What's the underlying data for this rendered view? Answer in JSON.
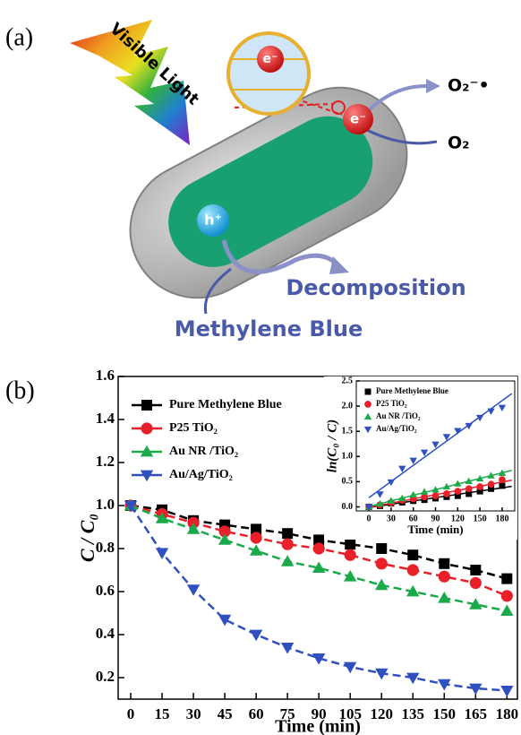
{
  "panel_a": {
    "label": "(a)",
    "light": "Visible Light",
    "electron_zoom": "e⁻",
    "electron": "e⁻",
    "superoxide": "O₂⁻•",
    "oxygen": "O₂",
    "hole": "h⁺",
    "decomposition": "Decomposition",
    "dye": "Methylene Blue"
  },
  "panel_b_label": "(b)",
  "chart_data": [
    {
      "type": "line",
      "ylabel": "C / C₀",
      "xlabel": "Time (min)",
      "lines": true,
      "x": [
        0,
        15,
        30,
        45,
        60,
        75,
        90,
        105,
        120,
        135,
        150,
        165,
        180
      ],
      "xlim": [
        -6,
        185
      ],
      "xticks": [
        0,
        15,
        30,
        45,
        60,
        75,
        90,
        105,
        120,
        135,
        150,
        165,
        180
      ],
      "ylim": [
        0.1,
        1.6
      ],
      "yticks": [
        0.2,
        0.4,
        0.6,
        0.8,
        {
          "value": 1,
          "label": "1.0"
        },
        1.2,
        1.4,
        1.6
      ],
      "series": [
        {
          "name": "Pure Methylene Blue",
          "color": "#000000",
          "marker": "square",
          "values": [
            1.0,
            0.98,
            0.93,
            0.91,
            0.89,
            0.87,
            0.84,
            0.82,
            0.8,
            0.77,
            0.73,
            0.7,
            0.66
          ]
        },
        {
          "name": "P25 TiO₂",
          "color": "#e8202a",
          "marker": "circle",
          "values": [
            1.0,
            0.96,
            0.92,
            0.88,
            0.85,
            0.82,
            0.8,
            0.77,
            0.73,
            0.7,
            0.67,
            0.64,
            0.58
          ]
        },
        {
          "name": "Au NR /TiO₂",
          "color": "#1aaa4a",
          "marker": "triangle-up",
          "values": [
            1.0,
            0.94,
            0.89,
            0.84,
            0.79,
            0.74,
            0.71,
            0.67,
            0.63,
            0.6,
            0.57,
            0.54,
            0.51
          ]
        },
        {
          "name": "Au/Ag/TiO₂",
          "color": "#3050c0",
          "marker": "triangle-down",
          "values": [
            1.0,
            0.78,
            0.61,
            0.47,
            0.4,
            0.34,
            0.29,
            0.25,
            0.22,
            0.2,
            0.17,
            0.15,
            0.14
          ]
        }
      ]
    },
    {
      "type": "scatter",
      "ylabel": "ln(C₀ / C)",
      "xlabel": "Time (min)",
      "lines": false,
      "fit": true,
      "x": [
        0,
        15,
        30,
        45,
        60,
        75,
        90,
        105,
        120,
        135,
        150,
        165,
        180
      ],
      "xlim": [
        -17,
        197
      ],
      "xticks": [
        0,
        30,
        60,
        90,
        120,
        150,
        180
      ],
      "ylim": [
        -0.08,
        2.5
      ],
      "yticks": [
        {
          "value": 0,
          "label": "0.0"
        },
        0.5,
        {
          "value": 1,
          "label": "1.0"
        },
        1.5,
        {
          "value": 2,
          "label": "2.0"
        },
        2.5
      ],
      "series": [
        {
          "name": "Pure Methylene Blue",
          "color": "#000000",
          "marker": "square",
          "values": [
            0,
            0.02,
            0.07,
            0.09,
            0.12,
            0.14,
            0.17,
            0.2,
            0.22,
            0.26,
            0.31,
            0.36,
            0.42
          ]
        },
        {
          "name": "P25 TiO₂",
          "color": "#e8202a",
          "marker": "circle",
          "values": [
            0,
            0.04,
            0.08,
            0.13,
            0.16,
            0.2,
            0.22,
            0.26,
            0.31,
            0.36,
            0.4,
            0.45,
            0.54
          ]
        },
        {
          "name": "Au NR /TiO₂",
          "color": "#1aaa4a",
          "marker": "triangle-up",
          "values": [
            0,
            0.06,
            0.12,
            0.17,
            0.24,
            0.3,
            0.34,
            0.4,
            0.46,
            0.51,
            0.56,
            0.62,
            0.67
          ]
        },
        {
          "name": "Au/Ag/TiO₂",
          "color": "#3050c0",
          "marker": "triangle-down",
          "values": [
            0,
            0.25,
            0.49,
            0.76,
            0.92,
            1.08,
            1.24,
            1.39,
            1.51,
            1.61,
            1.77,
            1.9,
            1.97
          ]
        }
      ]
    }
  ]
}
